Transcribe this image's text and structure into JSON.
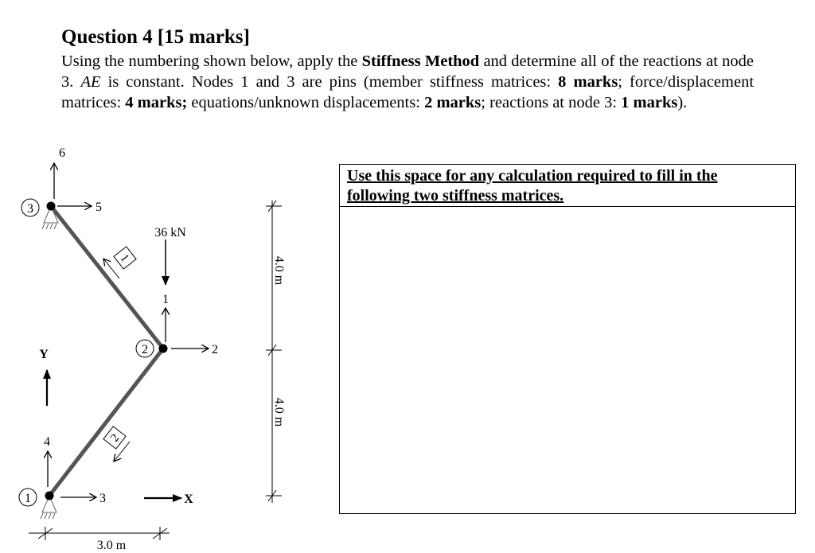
{
  "question": {
    "title": "Question 4 [15 marks]",
    "text_1": "Using the numbering shown below, apply the ",
    "bold_1": "Stiffness Method",
    "text_2": " and determine all of the reactions at node 3. ",
    "italic_1": "AE",
    "text_3": " is constant. Nodes 1 and 3 are pins (member stiffness matrices: ",
    "bold_2": "8 marks",
    "text_4": "; force/displacement matrices: ",
    "bold_3": "4 marks;",
    "text_5": " equations/unknown displacements: ",
    "bold_4": "2 marks",
    "text_6": "; reactions at node 3: ",
    "bold_5": "1 marks",
    "text_7": ")."
  },
  "diagram": {
    "nodes": [
      "1",
      "2",
      "3"
    ],
    "members": [
      "1",
      "2"
    ],
    "dof_labels": [
      "1",
      "2",
      "3",
      "4",
      "5",
      "6"
    ],
    "load": "36 kN",
    "axis_x": "X",
    "axis_y": "Y",
    "dim_vertical_top": "4.0 m",
    "dim_vertical_bottom": "4.0 m",
    "dim_horizontal": "3.0 m",
    "member_color": "#555555"
  },
  "answer_box": {
    "heading_line1": "Use this space for any calculation required to fill in the",
    "heading_line2": "following two stiffness matrices."
  }
}
